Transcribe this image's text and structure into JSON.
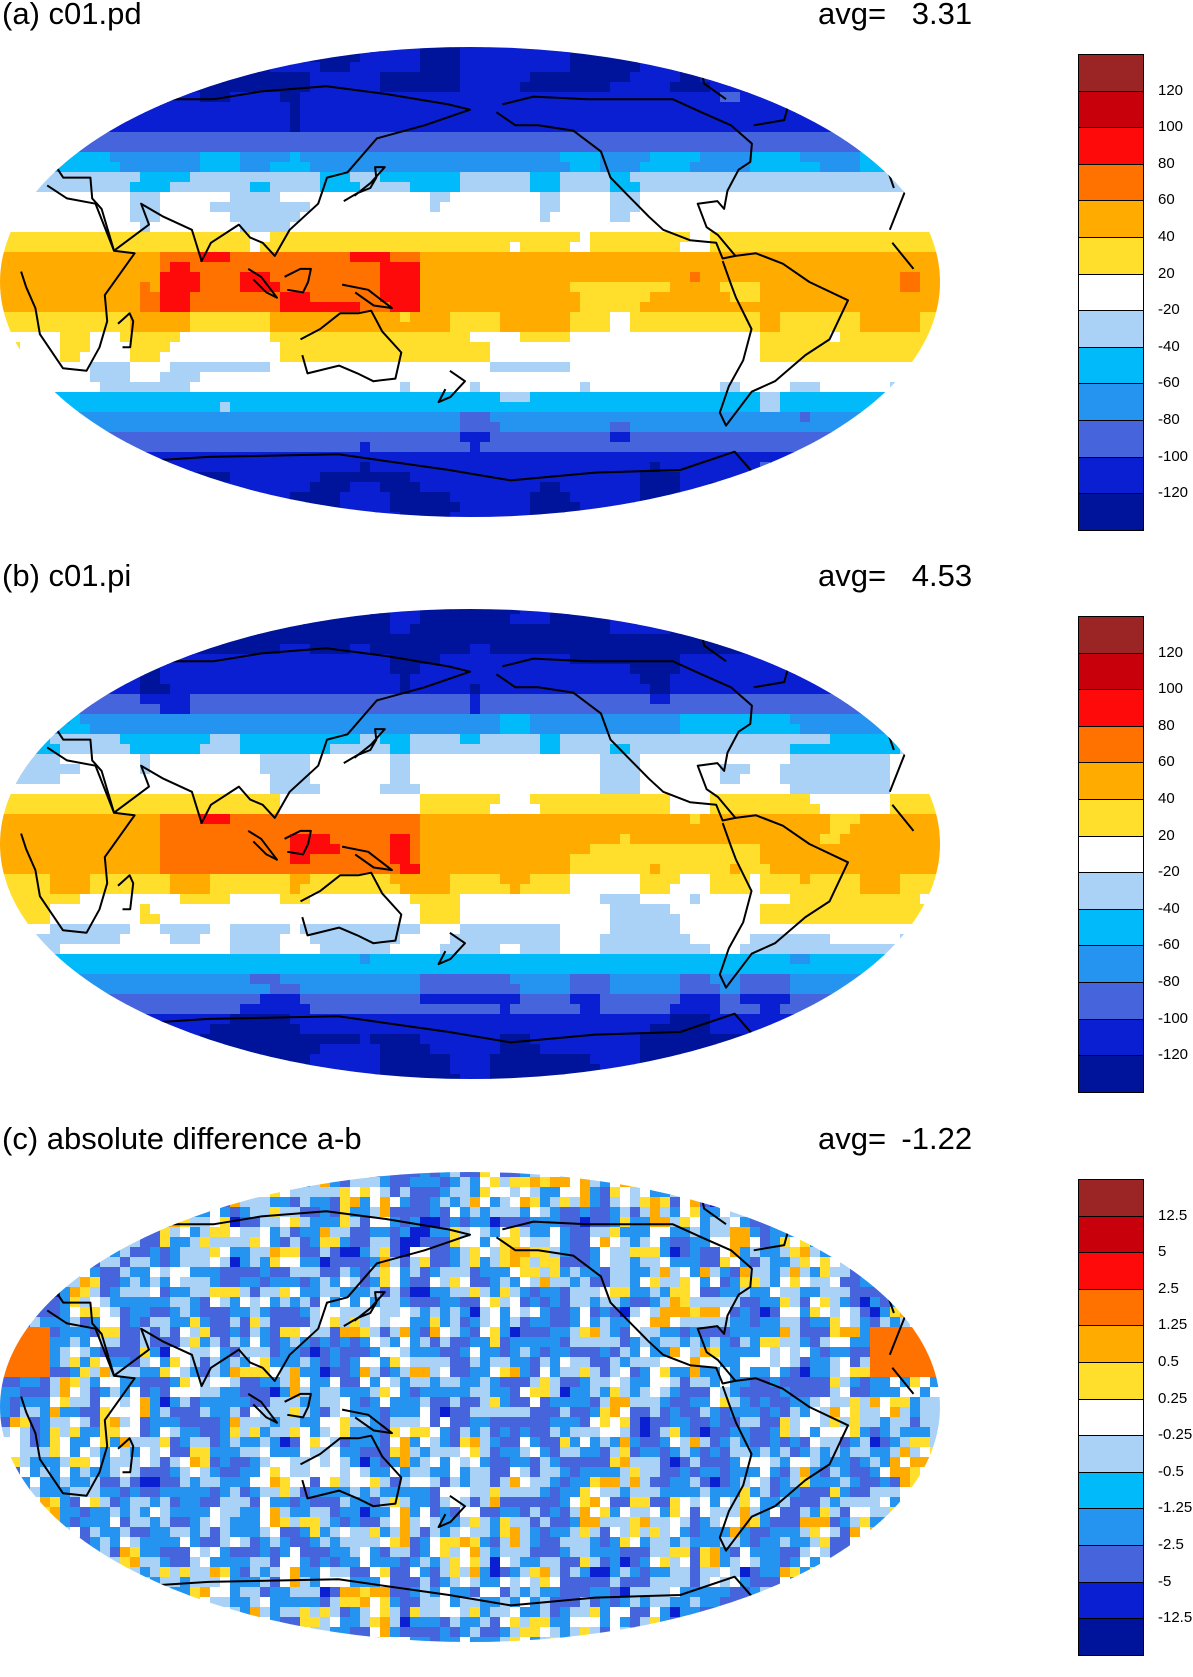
{
  "colors": {
    "scale": [
      "#9b2424",
      "#c8000c",
      "#ff0a0a",
      "#ff7200",
      "#ffab00",
      "#ffde2c",
      "#ffffff",
      "#aad2f6",
      "#00bafa",
      "#2494f0",
      "#4664dc",
      "#0a1ed2",
      "#00149b"
    ],
    "coastline": "#000000"
  },
  "panels": [
    {
      "id": "a",
      "title": "(a) c01.pd",
      "avg_label": "avg=",
      "avg_value": "3.31",
      "colorbar_labels": [
        "120",
        "100",
        "80",
        "60",
        "40",
        "20",
        "-20",
        "-40",
        "-60",
        "-80",
        "-100",
        "-120"
      ],
      "field": "pattern-a"
    },
    {
      "id": "b",
      "title": "(b) c01.pi",
      "avg_label": "avg=",
      "avg_value": "4.53",
      "colorbar_labels": [
        "120",
        "100",
        "80",
        "60",
        "40",
        "20",
        "-20",
        "-40",
        "-60",
        "-80",
        "-100",
        "-120"
      ],
      "field": "pattern-b"
    },
    {
      "id": "c",
      "title": "(c) absolute difference a-b",
      "avg_label": "avg=",
      "avg_value": "-1.22",
      "colorbar_labels": [
        "12.5",
        "5",
        "2.5",
        "1.25",
        "0.5",
        "0.25",
        "-0.25",
        "-0.5",
        "-1.25",
        "-2.5",
        "-5",
        "-12.5"
      ],
      "field": "pattern-diff"
    }
  ]
}
